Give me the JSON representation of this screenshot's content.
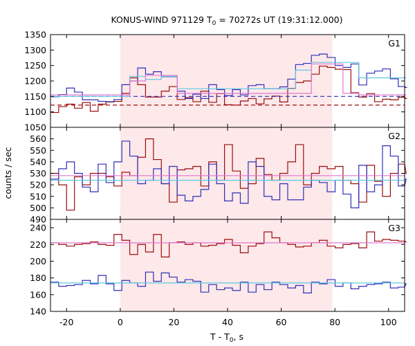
{
  "title": {
    "prefix": "KONUS-WIND 971129 T",
    "sub": "0",
    "suffix": " = 70272s UT (19:31:12.000)"
  },
  "chart_data": {
    "type": "line",
    "xlabel": {
      "prefix": "T - T",
      "sub": "0",
      "suffix": ", s"
    },
    "ylabel": "counts / sec",
    "xlim": [
      -26,
      106
    ],
    "x_ticks": [
      -20,
      0,
      20,
      40,
      60,
      80,
      100
    ],
    "highlight_interval": [
      0,
      79
    ],
    "bin_width": 2.944,
    "bin_start": -25.9,
    "colors": {
      "red": "#9b0d0d",
      "blue": "#2f2fb8",
      "cyan": "#60c8e0",
      "pink": "#e078d0",
      "shade": "#fde8ea"
    },
    "panels": [
      {
        "label": "G1",
        "ylim": [
          1050,
          1350
        ],
        "y_ticks": [
          1050,
          1100,
          1150,
          1200,
          1250,
          1300,
          1350
        ],
        "series": [
          {
            "color": "red",
            "values": [
              1098,
              1117,
              1125,
              1112,
              1130,
              1102,
              1125,
              1132,
              1134,
              1160,
              1210,
              1188,
              1148,
              1148,
              1167,
              1182,
              1140,
              1146,
              1133,
              1167,
              1131,
              1159,
              1123,
              1122,
              1135,
              1143,
              1126,
              1142,
              1151,
              1132,
              1176,
              1195,
              1200,
              1222,
              1248,
              1244,
              1238,
              1237,
              1162,
              1148,
              1159,
              1133,
              1141,
              1139,
              1147,
              1143
            ]
          },
          {
            "color": "blue",
            "values": [
              1149,
              1156,
              1177,
              1164,
              1139,
              1139,
              1134,
              1133,
              1140,
              1188,
              1200,
              1242,
              1222,
              1230,
              1214,
              1214,
              1167,
              1143,
              1157,
              1143,
              1188,
              1172,
              1153,
              1172,
              1155,
              1185,
              1188,
              1175,
              1175,
              1181,
              1206,
              1253,
              1257,
              1283,
              1287,
              1276,
              1250,
              1244,
              1255,
              1187,
              1225,
              1232,
              1239,
              1207,
              1182,
              1179
            ]
          },
          {
            "color": "red",
            "style": "dashed",
            "values": [
              1122,
              1122
            ]
          },
          {
            "color": "blue",
            "style": "dashed",
            "values": [
              1150,
              1150
            ]
          },
          {
            "color": "cyan",
            "values": [
              1150,
              1150,
              1150,
              1150,
              1150,
              1150,
              1150,
              1150,
              1150,
              1150,
              1215,
              1215,
              1205,
              1205,
              1215,
              1215,
              1175,
              1175,
              1175,
              1175,
              1175,
              1175,
              1175,
              1175,
              1175,
              1175,
              1175,
              1175,
              1175,
              1175,
              1175,
              1235,
              1235,
              1260,
              1260,
              1260,
              1260,
              1260,
              1260,
              1210,
              1210,
              1210,
              1210,
              1210,
              1210,
              1210
            ]
          },
          {
            "color": "pink",
            "values": [
              1155,
              1155,
              1155,
              1155,
              1155,
              1155,
              1155,
              1155,
              1155,
              1155,
              1200,
              1200,
              1218,
              1218,
              1218,
              1218,
              1160,
              1160,
              1160,
              1160,
              1160,
              1160,
              1160,
              1160,
              1160,
              1160,
              1160,
              1160,
              1160,
              1160,
              1160,
              1160,
              1160,
              1255,
              1255,
              1255,
              1255,
              1160,
              1160,
              1155,
              1155,
              1155,
              1155,
              1155,
              1155,
              1155
            ]
          }
        ]
      },
      {
        "label": "G2",
        "ylim": [
          490,
          570
        ],
        "y_ticks": [
          490,
          500,
          510,
          520,
          530,
          540,
          550,
          560
        ],
        "series": [
          {
            "color": "red",
            "values": [
              530,
              520,
              498,
              527,
              520,
              530,
              530,
              527,
              519,
              531,
              528,
              544,
              560,
              542,
              521,
              505,
              533,
              534,
              536,
              519,
              540,
              524,
              555,
              532,
              517,
              521,
              543,
              529,
              524,
              530,
              540,
              555,
              520,
              530,
              536,
              534,
              536,
              524,
              521,
              505,
              537,
              523,
              510,
              530,
              538,
              530
            ]
          },
          {
            "color": "blue",
            "values": [
              525,
              534,
              540,
              530,
              518,
              514,
              538,
              522,
              540,
              558,
              545,
              521,
              524,
              534,
              521,
              536,
              511,
              506,
              510,
              516,
              538,
              521,
              506,
              513,
              504,
              540,
              536,
              510,
              507,
              521,
              507,
              507,
              518,
              524,
              522,
              514,
              524,
              512,
              500,
              537,
              514,
              520,
              554,
              545,
              519,
              525
            ]
          },
          {
            "color": "cyan",
            "values": [
              524,
              524
            ]
          },
          {
            "color": "pink",
            "values": [
              528,
              528
            ]
          }
        ]
      },
      {
        "label": "G3",
        "ylim": [
          140,
          250
        ],
        "y_ticks": [
          140,
          160,
          180,
          200,
          220,
          240
        ],
        "series": [
          {
            "color": "red",
            "values": [
              222,
              220,
              218,
              220,
              221,
              223,
              220,
              219,
              232,
              225,
              208,
              220,
              211,
              232,
              205,
              222,
              223,
              220,
              222,
              218,
              219,
              221,
              226,
              219,
              210,
              218,
              221,
              235,
              228,
              222,
              220,
              217,
              218,
              222,
              225,
              218,
              216,
              220,
              221,
              216,
              235,
              224,
              226,
              225,
              224,
              223
            ]
          },
          {
            "color": "blue",
            "values": [
              175,
              170,
              171,
              172,
              177,
              173,
              183,
              173,
              165,
              177,
              174,
              170,
              187,
              176,
              186,
              181,
              175,
              178,
              176,
              163,
              172,
              166,
              168,
              165,
              175,
              163,
              172,
              166,
              175,
              172,
              168,
              171,
              162,
              175,
              173,
              178,
              170,
              174,
              167,
              170,
              172,
              173,
              175,
              168,
              169,
              173
            ]
          },
          {
            "color": "cyan",
            "values": [
              174,
              174
            ]
          },
          {
            "color": "pink",
            "values": [
              222,
              222
            ]
          }
        ]
      }
    ]
  }
}
